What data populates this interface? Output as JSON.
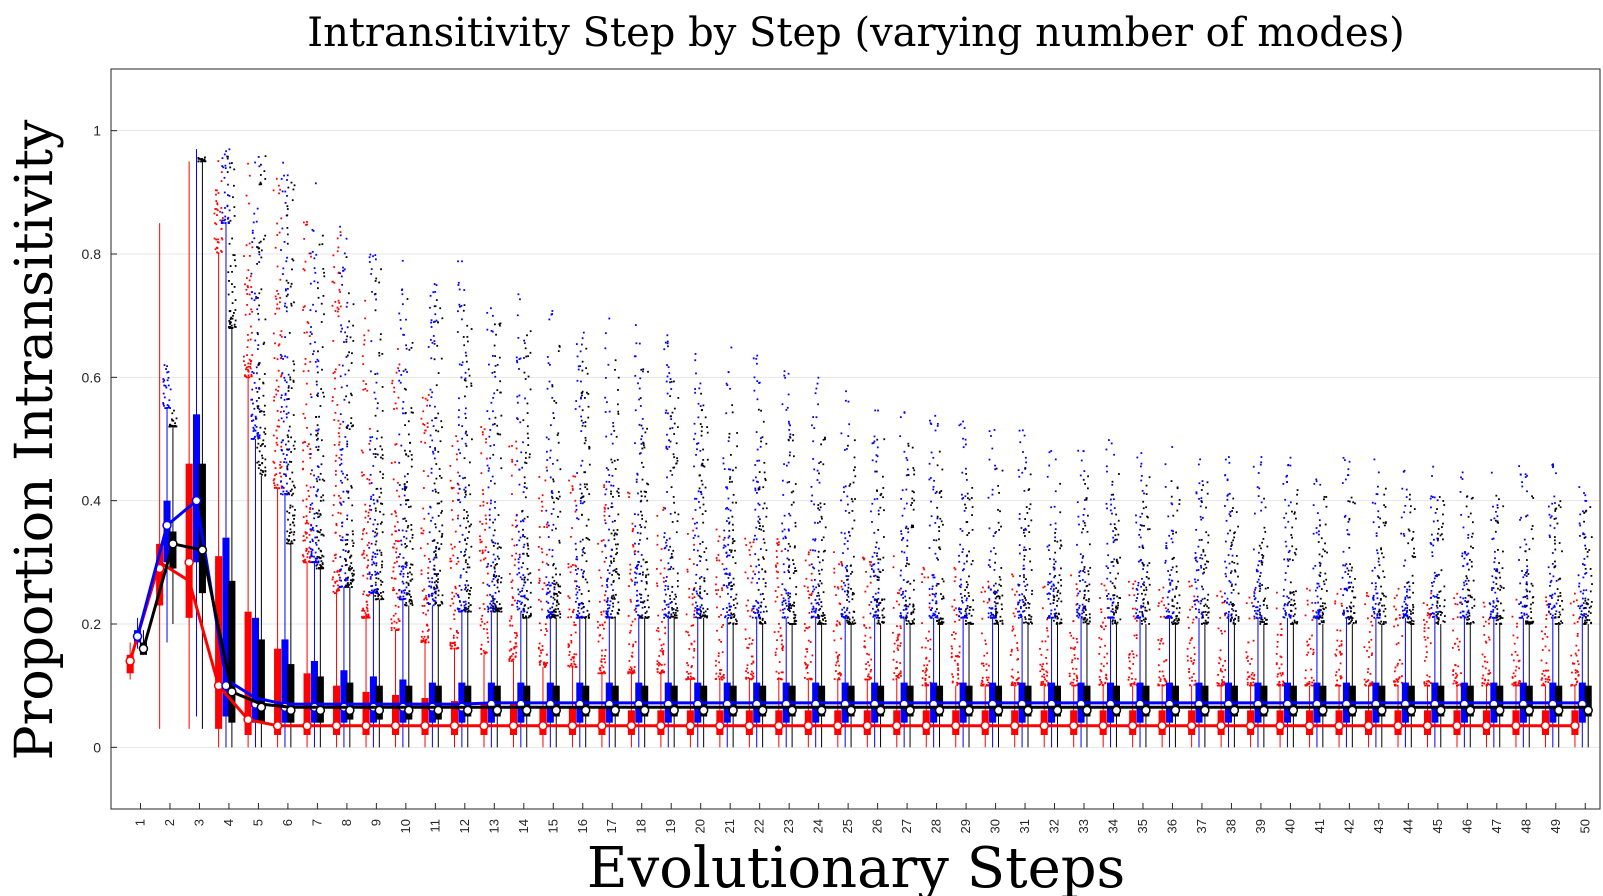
{
  "chart_data": {
    "type": "box",
    "title": "Intransitivity Step by Step (varying number of modes)",
    "xlabel": "Evolutionary Steps",
    "ylabel": "Proportion Intransitivity",
    "xlim": [
      0,
      50.5
    ],
    "ylim": [
      -0.1,
      1.1
    ],
    "yticks": [
      0,
      0.2,
      0.4,
      0.6,
      0.8,
      1
    ],
    "ytick_labels": [
      "0",
      "0.2",
      "0.4",
      "0.6",
      "0.8",
      "1"
    ],
    "categories": [
      "1",
      "2",
      "3",
      "4",
      "5",
      "6",
      "7",
      "8",
      "9",
      "10",
      "11",
      "12",
      "13",
      "14",
      "15",
      "16",
      "17",
      "18",
      "19",
      "20",
      "21",
      "22",
      "23",
      "24",
      "25",
      "26",
      "27",
      "28",
      "29",
      "30",
      "31",
      "32",
      "33",
      "34",
      "35",
      "36",
      "37",
      "38",
      "39",
      "40",
      "41",
      "42",
      "43",
      "44",
      "45",
      "46",
      "47",
      "48",
      "49",
      "50"
    ],
    "grid": true,
    "series": [
      {
        "color": "#ff0000",
        "offset": -0.35,
        "median": [
          0.14,
          0.29,
          0.3,
          0.1,
          0.045,
          0.035,
          0.035,
          0.035,
          0.035,
          0.035,
          0.035,
          0.035,
          0.035,
          0.035,
          0.035,
          0.035,
          0.035,
          0.035,
          0.035,
          0.035,
          0.035,
          0.035,
          0.035,
          0.035,
          0.035,
          0.035,
          0.035,
          0.035,
          0.035,
          0.035,
          0.035,
          0.035,
          0.035,
          0.035,
          0.035,
          0.035,
          0.035,
          0.035,
          0.035,
          0.035,
          0.035,
          0.035,
          0.035,
          0.035,
          0.035,
          0.035,
          0.035,
          0.035,
          0.035,
          0.035
        ],
        "q1": [
          0.12,
          0.23,
          0.21,
          0.03,
          0.02,
          0.02,
          0.02,
          0.02,
          0.02,
          0.02,
          0.02,
          0.02,
          0.02,
          0.02,
          0.02,
          0.02,
          0.02,
          0.02,
          0.02,
          0.02,
          0.02,
          0.02,
          0.02,
          0.02,
          0.02,
          0.02,
          0.02,
          0.02,
          0.02,
          0.02,
          0.02,
          0.02,
          0.02,
          0.02,
          0.02,
          0.02,
          0.02,
          0.02,
          0.02,
          0.02,
          0.02,
          0.02,
          0.02,
          0.02,
          0.02,
          0.02,
          0.02,
          0.02,
          0.02,
          0.02
        ],
        "q3": [
          0.15,
          0.33,
          0.46,
          0.31,
          0.22,
          0.16,
          0.12,
          0.1,
          0.09,
          0.085,
          0.08,
          0.075,
          0.07,
          0.07,
          0.065,
          0.065,
          0.065,
          0.06,
          0.06,
          0.06,
          0.06,
          0.06,
          0.06,
          0.06,
          0.06,
          0.06,
          0.06,
          0.06,
          0.06,
          0.06,
          0.06,
          0.06,
          0.06,
          0.06,
          0.06,
          0.06,
          0.06,
          0.06,
          0.06,
          0.06,
          0.06,
          0.06,
          0.06,
          0.06,
          0.06,
          0.06,
          0.06,
          0.06,
          0.06,
          0.06
        ],
        "whisker_low": [
          0.11,
          0.03,
          0.03,
          0.0,
          0.0,
          0.0,
          0.0,
          0.0,
          0.0,
          0.0,
          0.0,
          0.0,
          0.0,
          0.0,
          0.0,
          0.0,
          0.0,
          0.0,
          0.0,
          0.0,
          0.0,
          0.0,
          0.0,
          0.0,
          0.0,
          0.0,
          0.0,
          0.0,
          0.0,
          0.0,
          0.0,
          0.0,
          0.0,
          0.0,
          0.0,
          0.0,
          0.0,
          0.0,
          0.0,
          0.0,
          0.0,
          0.0,
          0.0,
          0.0,
          0.0,
          0.0,
          0.0,
          0.0,
          0.0,
          0.0
        ],
        "whisker_high": [
          0.17,
          0.85,
          0.95,
          0.8,
          0.6,
          0.42,
          0.3,
          0.25,
          0.21,
          0.19,
          0.17,
          0.16,
          0.15,
          0.14,
          0.13,
          0.13,
          0.12,
          0.12,
          0.12,
          0.11,
          0.11,
          0.11,
          0.11,
          0.11,
          0.11,
          0.11,
          0.11,
          0.1,
          0.1,
          0.1,
          0.1,
          0.1,
          0.1,
          0.1,
          0.1,
          0.1,
          0.1,
          0.1,
          0.1,
          0.1,
          0.1,
          0.1,
          0.1,
          0.1,
          0.1,
          0.1,
          0.1,
          0.1,
          0.1,
          0.1
        ],
        "mean": [
          0.14,
          0.3,
          0.27,
          0.1,
          0.045,
          0.035,
          0.035,
          0.035,
          0.035,
          0.035,
          0.035,
          0.035,
          0.035,
          0.035,
          0.035,
          0.035,
          0.035,
          0.035,
          0.035,
          0.035,
          0.035,
          0.035,
          0.035,
          0.035,
          0.035,
          0.035,
          0.035,
          0.035,
          0.035,
          0.035,
          0.035,
          0.035,
          0.035,
          0.035,
          0.035,
          0.035,
          0.035,
          0.035,
          0.035,
          0.035,
          0.035,
          0.035,
          0.035,
          0.035,
          0.035,
          0.035,
          0.035,
          0.035,
          0.035,
          0.035
        ],
        "outlier_max": [
          0.17,
          0.45,
          0.95,
          0.96,
          0.95,
          0.93,
          0.9,
          0.85,
          0.75,
          0.65,
          0.6,
          0.55,
          0.52,
          0.5,
          0.48,
          0.46,
          0.44,
          0.42,
          0.4,
          0.38,
          0.36,
          0.35,
          0.34,
          0.33,
          0.32,
          0.32,
          0.31,
          0.3,
          0.3,
          0.29,
          0.29,
          0.28,
          0.28,
          0.28,
          0.27,
          0.27,
          0.27,
          0.27,
          0.26,
          0.26,
          0.26,
          0.26,
          0.26,
          0.26,
          0.25,
          0.25,
          0.25,
          0.25,
          0.25,
          0.25
        ]
      },
      {
        "color": "#0000ff",
        "offset": -0.1,
        "median": [
          0.18,
          0.36,
          0.4,
          0.1,
          0.07,
          0.065,
          0.065,
          0.065,
          0.065,
          0.065,
          0.065,
          0.065,
          0.07,
          0.07,
          0.07,
          0.07,
          0.07,
          0.07,
          0.07,
          0.07,
          0.07,
          0.07,
          0.07,
          0.07,
          0.07,
          0.07,
          0.07,
          0.07,
          0.07,
          0.07,
          0.07,
          0.07,
          0.07,
          0.07,
          0.07,
          0.07,
          0.07,
          0.07,
          0.07,
          0.07,
          0.07,
          0.07,
          0.07,
          0.07,
          0.07,
          0.07,
          0.07,
          0.07,
          0.07,
          0.07
        ],
        "q1": [
          0.17,
          0.3,
          0.3,
          0.05,
          0.04,
          0.04,
          0.04,
          0.04,
          0.04,
          0.04,
          0.04,
          0.04,
          0.04,
          0.04,
          0.04,
          0.04,
          0.04,
          0.04,
          0.04,
          0.04,
          0.04,
          0.04,
          0.04,
          0.04,
          0.04,
          0.04,
          0.04,
          0.04,
          0.04,
          0.04,
          0.04,
          0.04,
          0.04,
          0.04,
          0.04,
          0.04,
          0.04,
          0.04,
          0.04,
          0.04,
          0.04,
          0.04,
          0.04,
          0.04,
          0.04,
          0.04,
          0.04,
          0.04,
          0.04,
          0.04
        ],
        "q3": [
          0.19,
          0.4,
          0.54,
          0.34,
          0.21,
          0.175,
          0.14,
          0.125,
          0.115,
          0.11,
          0.105,
          0.105,
          0.105,
          0.105,
          0.105,
          0.105,
          0.105,
          0.105,
          0.105,
          0.105,
          0.105,
          0.105,
          0.105,
          0.105,
          0.105,
          0.105,
          0.105,
          0.105,
          0.105,
          0.105,
          0.105,
          0.105,
          0.105,
          0.105,
          0.105,
          0.105,
          0.105,
          0.105,
          0.105,
          0.105,
          0.105,
          0.105,
          0.105,
          0.105,
          0.105,
          0.105,
          0.105,
          0.105,
          0.105,
          0.105
        ],
        "whisker_low": [
          0.16,
          0.17,
          0.05,
          0.0,
          0.0,
          0.0,
          0.0,
          0.0,
          0.0,
          0.0,
          0.0,
          0.0,
          0.0,
          0.0,
          0.0,
          0.0,
          0.0,
          0.0,
          0.0,
          0.0,
          0.0,
          0.0,
          0.0,
          0.0,
          0.0,
          0.0,
          0.0,
          0.0,
          0.0,
          0.0,
          0.0,
          0.0,
          0.0,
          0.0,
          0.0,
          0.0,
          0.0,
          0.0,
          0.0,
          0.0,
          0.0,
          0.0,
          0.0,
          0.0,
          0.0,
          0.0,
          0.0,
          0.0,
          0.0,
          0.0
        ],
        "whisker_high": [
          0.21,
          0.55,
          0.97,
          0.85,
          0.5,
          0.41,
          0.3,
          0.26,
          0.25,
          0.24,
          0.23,
          0.22,
          0.22,
          0.22,
          0.21,
          0.21,
          0.21,
          0.21,
          0.21,
          0.21,
          0.21,
          0.21,
          0.21,
          0.21,
          0.21,
          0.21,
          0.21,
          0.21,
          0.21,
          0.21,
          0.21,
          0.21,
          0.21,
          0.21,
          0.21,
          0.21,
          0.21,
          0.21,
          0.21,
          0.21,
          0.21,
          0.21,
          0.21,
          0.21,
          0.21,
          0.21,
          0.21,
          0.21,
          0.21,
          0.21
        ],
        "mean": [
          0.18,
          0.36,
          0.4,
          0.11,
          0.08,
          0.07,
          0.07,
          0.07,
          0.07,
          0.07,
          0.07,
          0.07,
          0.072,
          0.072,
          0.072,
          0.072,
          0.072,
          0.072,
          0.072,
          0.072,
          0.072,
          0.072,
          0.072,
          0.072,
          0.072,
          0.072,
          0.072,
          0.072,
          0.072,
          0.072,
          0.072,
          0.072,
          0.072,
          0.072,
          0.072,
          0.072,
          0.072,
          0.072,
          0.072,
          0.072,
          0.072,
          0.072,
          0.072,
          0.072,
          0.072,
          0.072,
          0.072,
          0.072,
          0.072,
          0.072
        ],
        "outlier_max": [
          0.21,
          0.63,
          0.97,
          0.98,
          0.97,
          0.97,
          0.93,
          0.85,
          0.82,
          0.8,
          0.78,
          0.8,
          0.78,
          0.75,
          0.72,
          0.72,
          0.7,
          0.7,
          0.68,
          0.66,
          0.65,
          0.64,
          0.62,
          0.6,
          0.58,
          0.56,
          0.55,
          0.54,
          0.54,
          0.52,
          0.52,
          0.5,
          0.5,
          0.5,
          0.49,
          0.49,
          0.48,
          0.48,
          0.48,
          0.47,
          0.47,
          0.47,
          0.47,
          0.46,
          0.46,
          0.46,
          0.46,
          0.46,
          0.46,
          0.45
        ]
      },
      {
        "color": "#000000",
        "offset": 0.1,
        "median": [
          0.16,
          0.33,
          0.32,
          0.09,
          0.065,
          0.06,
          0.06,
          0.06,
          0.06,
          0.06,
          0.06,
          0.06,
          0.06,
          0.06,
          0.06,
          0.06,
          0.06,
          0.06,
          0.06,
          0.06,
          0.06,
          0.06,
          0.06,
          0.06,
          0.06,
          0.06,
          0.06,
          0.06,
          0.06,
          0.06,
          0.06,
          0.06,
          0.06,
          0.06,
          0.06,
          0.06,
          0.06,
          0.06,
          0.06,
          0.06,
          0.06,
          0.06,
          0.06,
          0.06,
          0.06,
          0.06,
          0.06,
          0.06,
          0.06,
          0.06
        ],
        "q1": [
          0.15,
          0.29,
          0.25,
          0.04,
          0.04,
          0.04,
          0.04,
          0.045,
          0.045,
          0.045,
          0.045,
          0.05,
          0.05,
          0.05,
          0.05,
          0.05,
          0.05,
          0.05,
          0.05,
          0.05,
          0.05,
          0.05,
          0.05,
          0.05,
          0.05,
          0.05,
          0.05,
          0.05,
          0.05,
          0.05,
          0.05,
          0.05,
          0.05,
          0.05,
          0.05,
          0.05,
          0.05,
          0.05,
          0.05,
          0.05,
          0.05,
          0.05,
          0.05,
          0.05,
          0.05,
          0.05,
          0.05,
          0.05,
          0.05,
          0.05
        ],
        "q3": [
          0.17,
          0.35,
          0.46,
          0.27,
          0.175,
          0.135,
          0.115,
          0.105,
          0.1,
          0.1,
          0.1,
          0.1,
          0.1,
          0.1,
          0.1,
          0.1,
          0.1,
          0.1,
          0.1,
          0.1,
          0.1,
          0.1,
          0.1,
          0.1,
          0.1,
          0.1,
          0.1,
          0.1,
          0.1,
          0.1,
          0.1,
          0.1,
          0.1,
          0.1,
          0.1,
          0.1,
          0.1,
          0.1,
          0.1,
          0.1,
          0.1,
          0.1,
          0.1,
          0.1,
          0.1,
          0.1,
          0.1,
          0.1,
          0.1,
          0.1
        ],
        "whisker_low": [
          0.15,
          0.2,
          0.03,
          0.0,
          0.0,
          0.0,
          0.0,
          0.0,
          0.0,
          0.0,
          0.0,
          0.0,
          0.0,
          0.0,
          0.0,
          0.0,
          0.0,
          0.0,
          0.0,
          0.0,
          0.0,
          0.0,
          0.0,
          0.0,
          0.0,
          0.0,
          0.0,
          0.0,
          0.0,
          0.0,
          0.0,
          0.0,
          0.0,
          0.0,
          0.0,
          0.0,
          0.0,
          0.0,
          0.0,
          0.0,
          0.0,
          0.0,
          0.0,
          0.0,
          0.0,
          0.0,
          0.0,
          0.0,
          0.0,
          0.0
        ],
        "whisker_high": [
          0.19,
          0.52,
          0.95,
          0.68,
          0.44,
          0.33,
          0.29,
          0.26,
          0.24,
          0.23,
          0.23,
          0.22,
          0.22,
          0.21,
          0.21,
          0.21,
          0.21,
          0.21,
          0.21,
          0.21,
          0.2,
          0.2,
          0.2,
          0.2,
          0.2,
          0.2,
          0.2,
          0.2,
          0.2,
          0.2,
          0.2,
          0.2,
          0.2,
          0.2,
          0.2,
          0.2,
          0.2,
          0.2,
          0.2,
          0.2,
          0.2,
          0.2,
          0.2,
          0.2,
          0.2,
          0.2,
          0.2,
          0.2,
          0.2,
          0.2
        ],
        "mean": [
          0.16,
          0.33,
          0.32,
          0.09,
          0.07,
          0.065,
          0.065,
          0.065,
          0.065,
          0.065,
          0.065,
          0.065,
          0.065,
          0.065,
          0.065,
          0.065,
          0.065,
          0.065,
          0.065,
          0.065,
          0.065,
          0.065,
          0.065,
          0.065,
          0.065,
          0.065,
          0.065,
          0.065,
          0.065,
          0.065,
          0.065,
          0.065,
          0.065,
          0.065,
          0.065,
          0.065,
          0.065,
          0.065,
          0.065,
          0.065,
          0.065,
          0.065,
          0.065,
          0.065,
          0.065,
          0.065,
          0.065,
          0.065,
          0.065,
          0.065
        ],
        "outlier_max": [
          0.19,
          0.55,
          0.96,
          0.97,
          0.96,
          0.95,
          0.88,
          0.8,
          0.78,
          0.75,
          0.74,
          0.72,
          0.7,
          0.68,
          0.66,
          0.65,
          0.64,
          0.62,
          0.6,
          0.58,
          0.56,
          0.55,
          0.54,
          0.52,
          0.5,
          0.5,
          0.5,
          0.48,
          0.48,
          0.46,
          0.46,
          0.45,
          0.45,
          0.45,
          0.44,
          0.44,
          0.43,
          0.43,
          0.42,
          0.42,
          0.42,
          0.42,
          0.42,
          0.41,
          0.41,
          0.41,
          0.41,
          0.41,
          0.4,
          0.4
        ]
      }
    ]
  }
}
